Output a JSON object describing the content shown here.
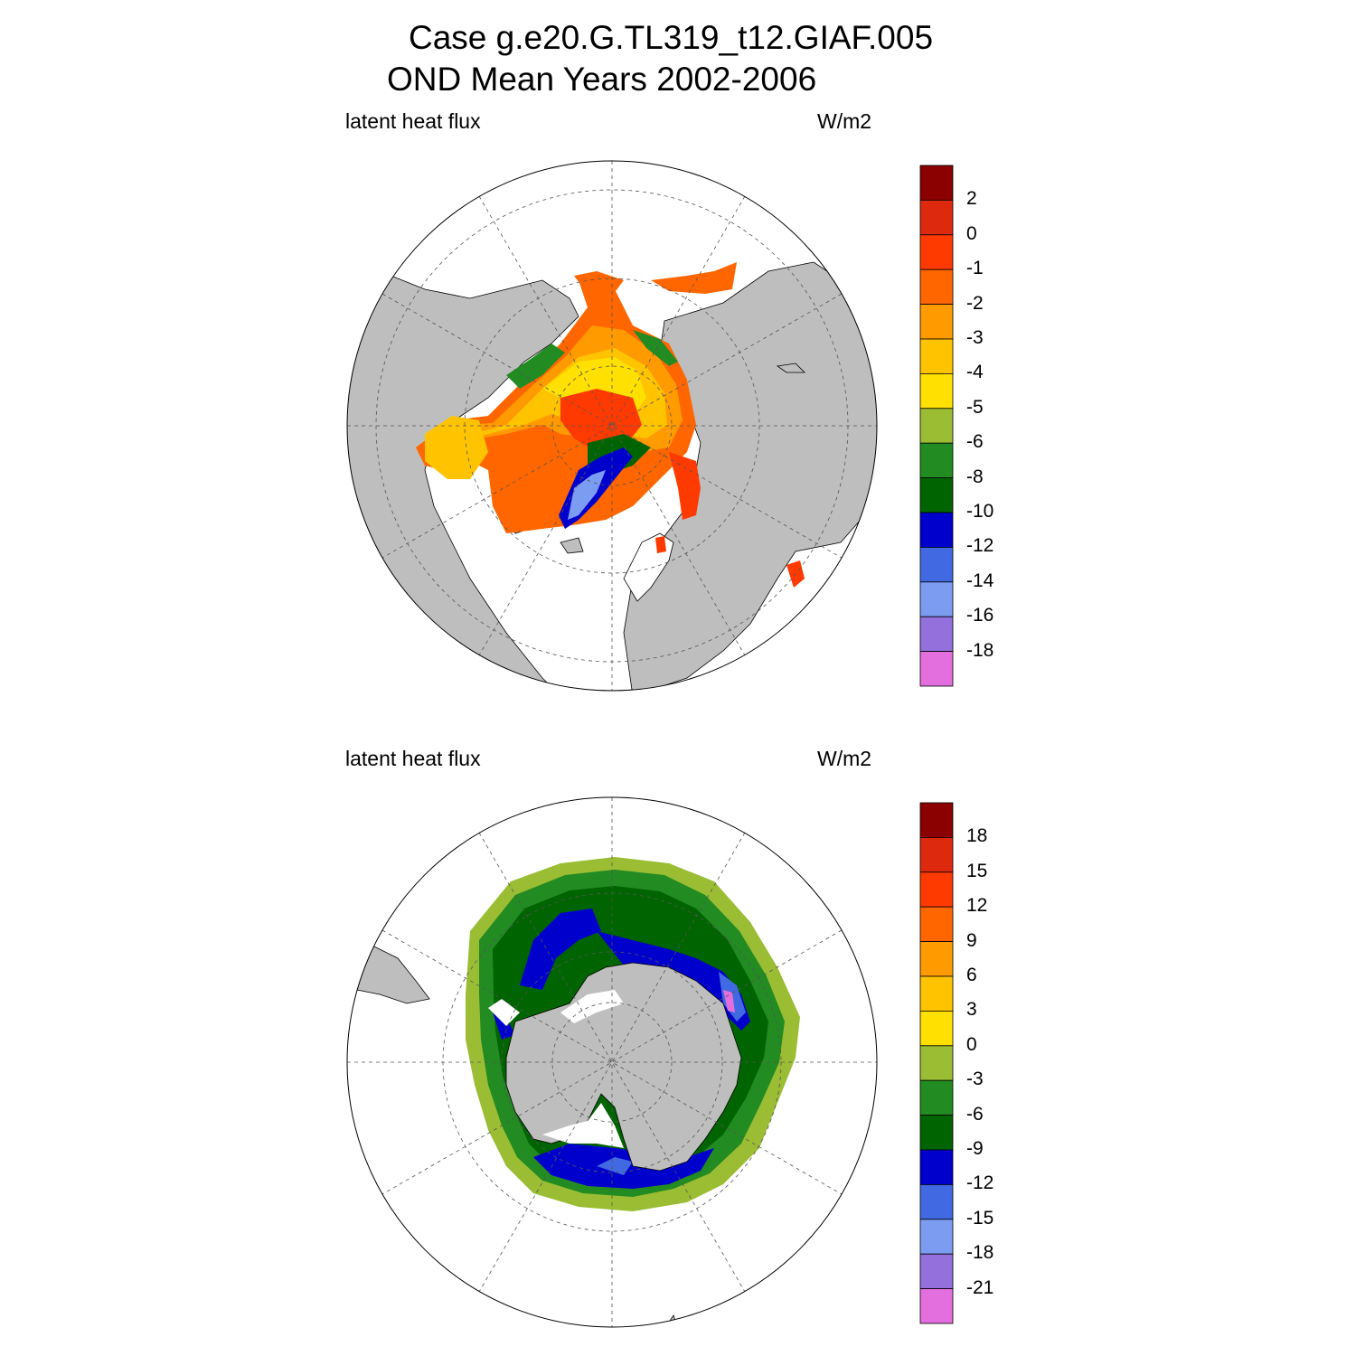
{
  "title": {
    "line1": "Case g.e20.G.TL319_t12.GIAF.005",
    "line2": "OND Mean   Years 2002-2006"
  },
  "colors": {
    "land": "#bebebe",
    "no_data": "#ffffff",
    "palette": [
      "#e36fde",
      "#9370db",
      "#7b9cf0",
      "#4169e1",
      "#0000cd",
      "#006400",
      "#228b22",
      "#9abd33",
      "#ffe000",
      "#ffc300",
      "#ff9a00",
      "#ff6600",
      "#ff3a00",
      "#dd2a0f",
      "#8b0000"
    ]
  },
  "panels": [
    {
      "name": "arctic",
      "variable_label": "latent heat flux",
      "units_label": "W/m2",
      "colorbar_ticks": [
        "2",
        "0",
        "-1",
        "-2",
        "-3",
        "-4",
        "-5",
        "-6",
        "-8",
        "-10",
        "-12",
        "-14",
        "-16",
        "-18"
      ]
    },
    {
      "name": "antarctic",
      "variable_label": "latent heat flux",
      "units_label": "W/m2",
      "colorbar_ticks": [
        "18",
        "15",
        "12",
        "9",
        "6",
        "3",
        "0",
        "-3",
        "-6",
        "-9",
        "-12",
        "-15",
        "-18",
        "-21"
      ]
    }
  ]
}
